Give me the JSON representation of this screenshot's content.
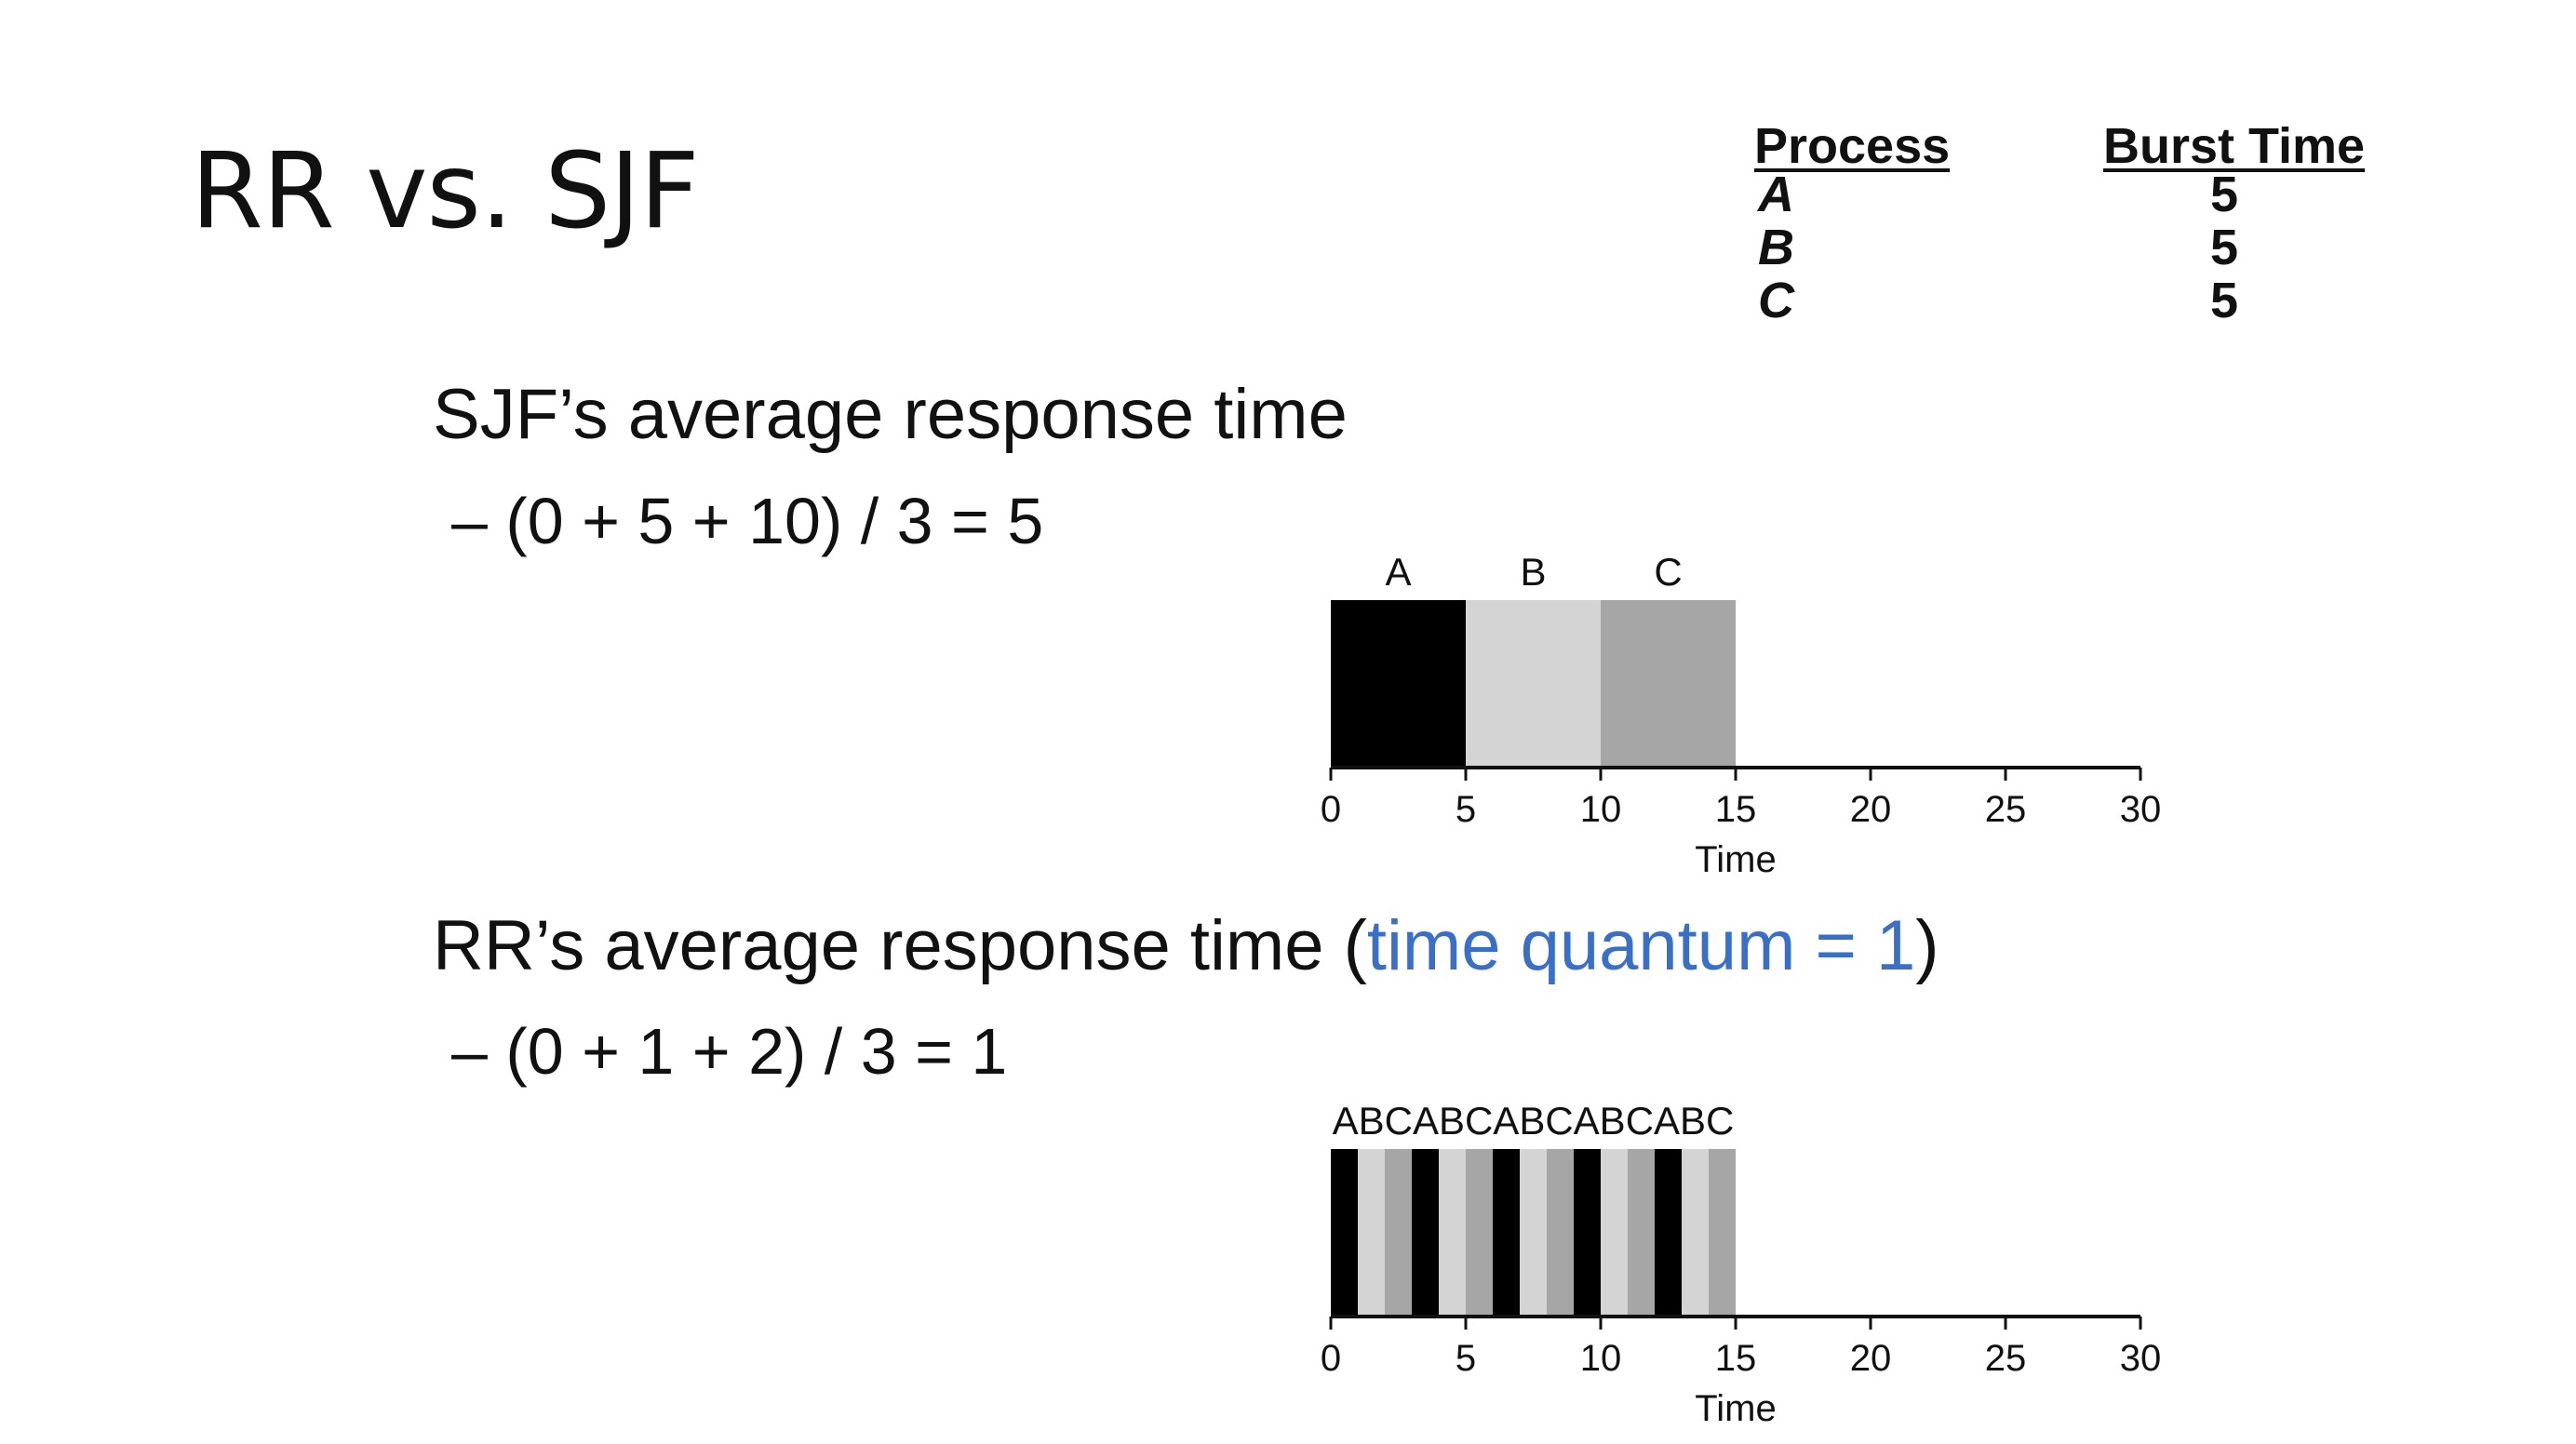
{
  "slide": {
    "title": "RR vs. SJF"
  },
  "process_table": {
    "headers": {
      "process": "Process",
      "burst": "Burst Time"
    },
    "rows": [
      {
        "process": "A",
        "burst": "5"
      },
      {
        "process": "B",
        "burst": "5"
      },
      {
        "process": "C",
        "burst": "5"
      }
    ]
  },
  "sjf": {
    "heading": "SJF’s average response time",
    "formula": "– (0 + 5 + 10) / 3 = 5"
  },
  "rr": {
    "heading_prefix": "RR’s average response time (",
    "heading_accent": "time quantum = 1",
    "heading_suffix": ")",
    "formula": "– (0 + 1 + 2) / 3 = 1"
  },
  "colors": {
    "A": "#000000",
    "B": "#d4d4d4",
    "C": "#a6a6a6",
    "accent": "#3a6fc7"
  },
  "chart_data": [
    {
      "type": "gantt",
      "name": "sjf",
      "xlabel": "Time",
      "xlim": [
        0,
        30
      ],
      "ticks": [
        0,
        5,
        10,
        15,
        20,
        25,
        30
      ],
      "segments": [
        {
          "label": "A",
          "start": 0,
          "end": 5
        },
        {
          "label": "B",
          "start": 5,
          "end": 10
        },
        {
          "label": "C",
          "start": 10,
          "end": 15
        }
      ]
    },
    {
      "type": "gantt",
      "name": "rr",
      "xlabel": "Time",
      "xlim": [
        0,
        30
      ],
      "ticks": [
        0,
        5,
        10,
        15,
        20,
        25,
        30
      ],
      "top_label": "ABCABCABCABCABC",
      "segments": [
        {
          "label": "A",
          "start": 0,
          "end": 1
        },
        {
          "label": "B",
          "start": 1,
          "end": 2
        },
        {
          "label": "C",
          "start": 2,
          "end": 3
        },
        {
          "label": "A",
          "start": 3,
          "end": 4
        },
        {
          "label": "B",
          "start": 4,
          "end": 5
        },
        {
          "label": "C",
          "start": 5,
          "end": 6
        },
        {
          "label": "A",
          "start": 6,
          "end": 7
        },
        {
          "label": "B",
          "start": 7,
          "end": 8
        },
        {
          "label": "C",
          "start": 8,
          "end": 9
        },
        {
          "label": "A",
          "start": 9,
          "end": 10
        },
        {
          "label": "B",
          "start": 10,
          "end": 11
        },
        {
          "label": "C",
          "start": 11,
          "end": 12
        },
        {
          "label": "A",
          "start": 12,
          "end": 13
        },
        {
          "label": "B",
          "start": 13,
          "end": 14
        },
        {
          "label": "C",
          "start": 14,
          "end": 15
        }
      ]
    }
  ]
}
